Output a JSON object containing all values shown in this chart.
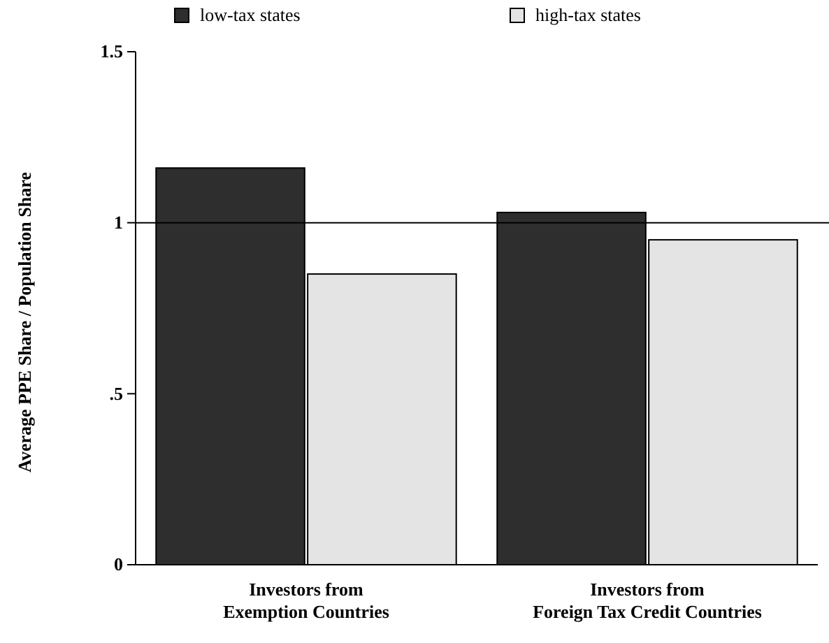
{
  "chart_data": {
    "type": "bar",
    "ylabel": "Average PPE Share / Population Share",
    "categories": [
      "Investors from\nExemption Countries",
      "Investors from\nForeign Tax Credit Countries"
    ],
    "series": [
      {
        "name": "low-tax states",
        "color": "#2e2e2e",
        "values": [
          1.16,
          1.03
        ]
      },
      {
        "name": "high-tax states",
        "color": "#e4e4e4",
        "values": [
          0.85,
          0.95
        ]
      }
    ],
    "ylim": [
      0,
      1.5
    ],
    "yticks": [
      0,
      {
        "value": 0.5,
        "label": ".5"
      },
      1,
      {
        "value": 1.5,
        "label": "1.5"
      }
    ],
    "ref_lines": [
      {
        "axis": "y",
        "value": 1,
        "color": "#000000",
        "line_style": "solid"
      }
    ],
    "legend": "top",
    "grid": false
  }
}
